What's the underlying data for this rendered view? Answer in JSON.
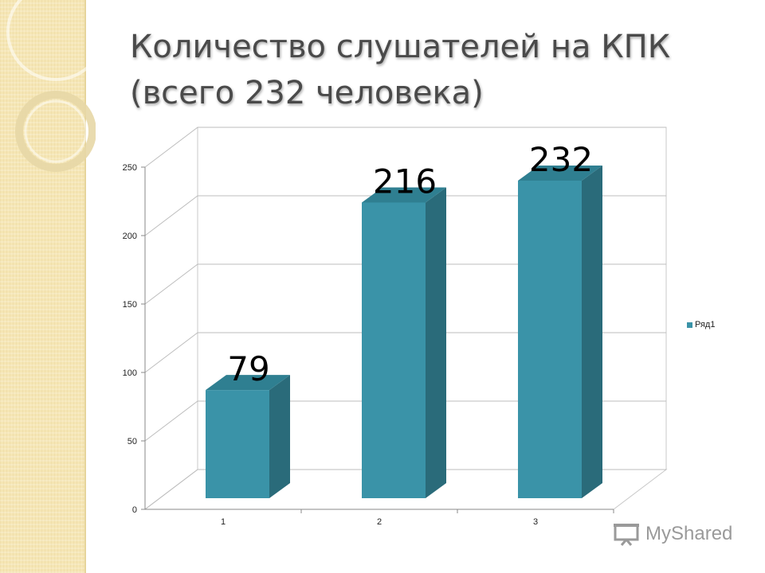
{
  "title_line1": "Количество слушателей на КПК",
  "title_line2": "(всего 232 человека)",
  "watermark": "MyShared",
  "colors": {
    "bar_front": "#3a93a8",
    "bar_side": "#2a6b7a",
    "bar_top": "#2f7f91",
    "accent": "#f5e6b4"
  },
  "chart_data": {
    "type": "bar",
    "categories": [
      "1",
      "2",
      "3"
    ],
    "series": [
      {
        "name": "Ряд1",
        "values": [
          79,
          216,
          232
        ]
      }
    ],
    "data_labels": [
      "79",
      "216",
      "232"
    ],
    "ylim": [
      0,
      250
    ],
    "yticks": [
      "0",
      "50",
      "100",
      "150",
      "200",
      "250"
    ],
    "grid": true,
    "legend_position": "right",
    "style": "3d"
  }
}
